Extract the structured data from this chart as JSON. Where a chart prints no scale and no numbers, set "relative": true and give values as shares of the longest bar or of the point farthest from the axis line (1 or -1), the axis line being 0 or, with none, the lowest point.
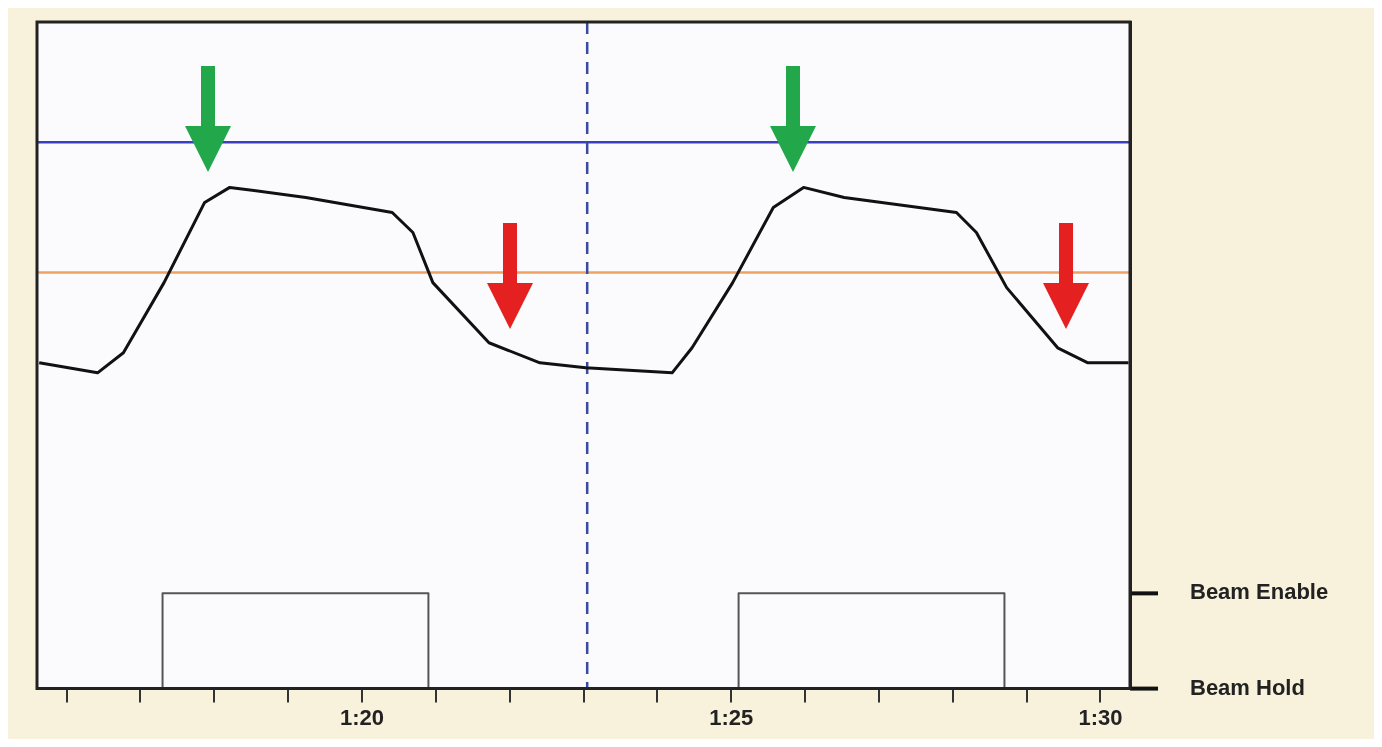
{
  "chart_data": {
    "type": "line",
    "relative": true,
    "series": [
      {
        "color": "#111111",
        "x": [
          75.63,
          76.42,
          76.77,
          77.32,
          77.87,
          78.21,
          79.24,
          80.41,
          80.69,
          80.96,
          81.72,
          82.41,
          83.03,
          84.2,
          84.47,
          85.02,
          85.57,
          85.98,
          86.53,
          88.05,
          88.32,
          88.73,
          89.42,
          89.83,
          90.38
        ],
        "values": [
          0.65,
          0.63,
          0.67,
          0.81,
          0.97,
          1,
          0.98,
          0.95,
          0.91,
          0.81,
          0.69,
          0.65,
          0.64,
          0.63,
          0.68,
          0.81,
          0.96,
          1,
          0.98,
          0.95,
          0.91,
          0.8,
          0.68,
          0.65,
          0.65
        ]
      },
      {
        "type": "step",
        "color": "#555555",
        "x": [
          75.6,
          77.3,
          80.9,
          85.1,
          88.7,
          90.4
        ],
        "values": [
          0,
          0.19,
          0,
          0.19,
          0,
          0
        ]
      }
    ],
    "xlim": [
      75.6,
      90.4
    ],
    "xticks": [
      {
        "value": 76,
        "label": null
      },
      {
        "value": 77,
        "label": null
      },
      {
        "value": 78,
        "label": null
      },
      {
        "value": 79,
        "label": null
      },
      {
        "value": 80,
        "label": "1:20"
      },
      {
        "value": 81,
        "label": null
      },
      {
        "value": 82,
        "label": null
      },
      {
        "value": 83,
        "label": null
      },
      {
        "value": 84,
        "label": null
      },
      {
        "value": 85,
        "label": "1:25"
      },
      {
        "value": 86,
        "label": null
      },
      {
        "value": 87,
        "label": null
      },
      {
        "value": 88,
        "label": null
      },
      {
        "value": 89,
        "label": null
      },
      {
        "value": 90,
        "label": "1:30"
      }
    ],
    "annotations": [
      "Beam Enable",
      "Beam Hold"
    ],
    "ref_lines": [
      {
        "axis": "y",
        "value": 1.09,
        "color": "#3a3fbf",
        "line_style": "solid"
      },
      {
        "axis": "y",
        "value": 0.83,
        "color": "#f0a060",
        "line_style": "solid"
      },
      {
        "axis": "x",
        "value": 83.05,
        "color": "#3a4aa0",
        "line_style": "dashed"
      }
    ],
    "grid": false,
    "legend": false,
    "marker": "none"
  }
}
